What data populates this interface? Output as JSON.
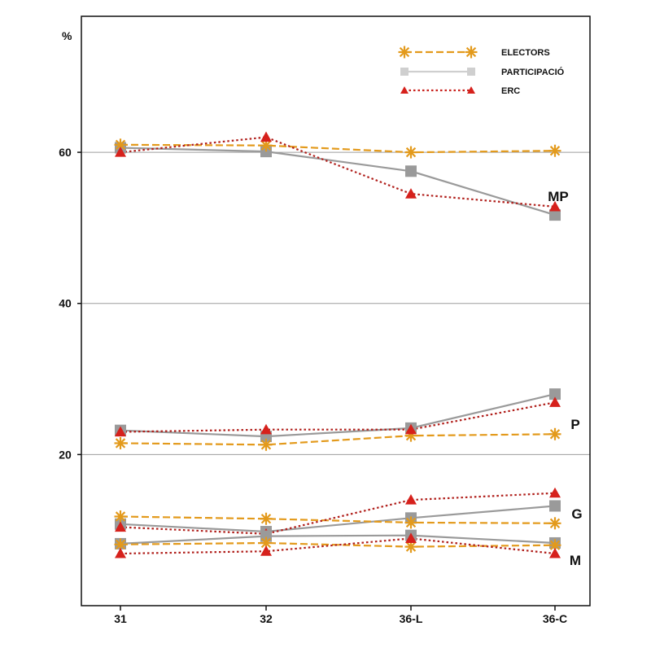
{
  "chart_data": {
    "type": "line",
    "ylabel": "%",
    "categories": [
      "31",
      "32",
      "36-L",
      "36-C"
    ],
    "ylim": [
      0,
      78
    ],
    "yticks": [
      20,
      40,
      60
    ],
    "grid": true,
    "legend": {
      "placement": "top-right",
      "entries": [
        {
          "name": "ELECTORS",
          "color": "#e39a1c",
          "marker": "asterisk",
          "style": "dashed"
        },
        {
          "name": "PARTICIPACIÓ",
          "color": "#cfcfcf",
          "marker": "square",
          "style": "solid"
        },
        {
          "name": "ERC",
          "color": "#c8201c",
          "marker": "triangle",
          "style": "dotted"
        }
      ]
    },
    "colors": {
      "electors": "#e39a1c",
      "participacio": "#9a9a9a",
      "erc_line": "#b01e1a",
      "erc_marker": "#d6211c"
    },
    "groups": [
      {
        "label": "MP",
        "series": [
          {
            "name": "ELECTORS",
            "values": [
              61.0,
              60.9,
              60.0,
              60.2
            ]
          },
          {
            "name": "PARTICIPACIÓ",
            "values": [
              60.6,
              60.1,
              57.5,
              51.7
            ]
          },
          {
            "name": "ERC",
            "values": [
              60.0,
              62.0,
              54.5,
              52.8
            ]
          }
        ]
      },
      {
        "label": "P",
        "series": [
          {
            "name": "ELECTORS",
            "values": [
              21.5,
              21.3,
              22.5,
              22.7
            ]
          },
          {
            "name": "PARTICIPACIÓ",
            "values": [
              23.2,
              22.4,
              23.5,
              28.0
            ]
          },
          {
            "name": "ERC",
            "values": [
              23.0,
              23.3,
              23.3,
              26.9
            ]
          }
        ]
      },
      {
        "label": "G",
        "series": [
          {
            "name": "ELECTORS",
            "values": [
              11.8,
              11.5,
              11.0,
              10.9
            ]
          },
          {
            "name": "PARTICIPACIÓ",
            "values": [
              10.8,
              9.8,
              11.6,
              13.2
            ]
          },
          {
            "name": "ERC",
            "values": [
              10.4,
              9.5,
              14.0,
              14.9
            ]
          }
        ]
      },
      {
        "label": "M",
        "series": [
          {
            "name": "ELECTORS",
            "values": [
              8.1,
              8.3,
              7.8,
              8.0
            ]
          },
          {
            "name": "PARTICIPACIÓ",
            "values": [
              8.2,
              9.2,
              9.3,
              8.3
            ]
          },
          {
            "name": "ERC",
            "values": [
              6.9,
              7.2,
              8.9,
              6.9
            ]
          }
        ]
      }
    ]
  }
}
